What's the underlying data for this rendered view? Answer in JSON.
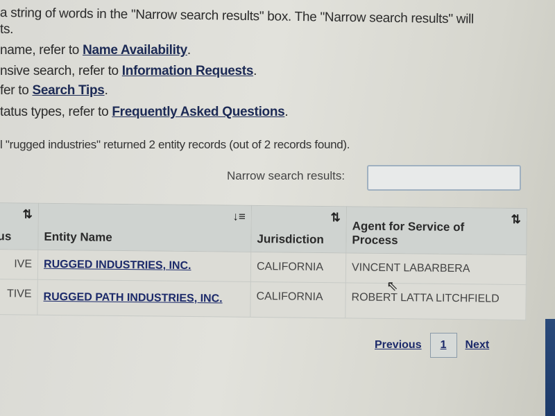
{
  "intro": {
    "line1": "a string of words in the \"Narrow search results\" box. The \"Narrow search results\" will",
    "line2": "ts.",
    "line3_prefix": "name, refer to ",
    "line3_link": "Name Availability",
    "line4_prefix": "nsive search, refer to ",
    "line4_link": "Information Requests",
    "line5_prefix": "fer to ",
    "line5_link": "Search Tips",
    "line6_prefix": "tatus types, refer to ",
    "line6_link": "Frequently Asked Questions",
    "period": ".",
    "result_summary": "l \"rugged industries\" returned 2 entity records (out of 2 records found)."
  },
  "search": {
    "narrow_label": "Narrow search results:",
    "narrow_value": ""
  },
  "table": {
    "headers": [
      "us",
      "Entity Name",
      "Jurisdiction",
      "Agent for Service of Process"
    ],
    "sort_icon": "sort-arrows-icon",
    "rows": [
      {
        "status": "IVE",
        "entity": "RUGGED INDUSTRIES, INC.",
        "jurisdiction": "CALIFORNIA",
        "agent": "VINCENT LABARBERA"
      },
      {
        "status": "TIVE",
        "entity": "RUGGED PATH INDUSTRIES, INC.",
        "jurisdiction": "CALIFORNIA",
        "agent": "ROBERT LATTA LITCHFIELD"
      }
    ]
  },
  "pagination": {
    "previous": "Previous",
    "page": "1",
    "next": "Next"
  }
}
